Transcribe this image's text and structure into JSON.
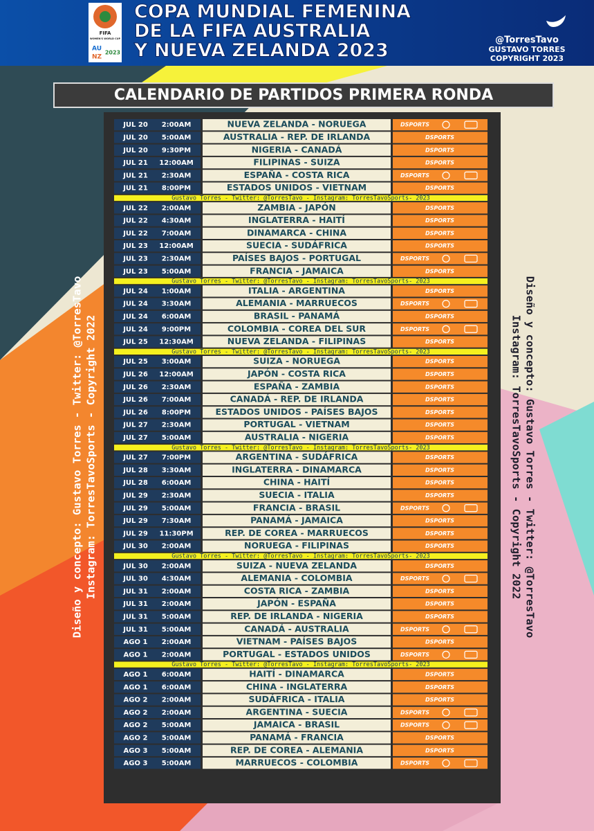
{
  "header": {
    "logo": [
      "FIFA",
      "WOMEN'S WORLD CUP",
      "AU",
      "NZ",
      "2023"
    ],
    "title_lines": [
      "COPA MUNDIAL FEMENINA",
      "DE LA FIFA AUSTRALIA",
      "Y NUEVA ZELANDA 2023"
    ],
    "handle": "@TorresTavo",
    "author": "GUSTAVO TORRES",
    "copyright": "COPYRIGHT 2023"
  },
  "subtitle": "CALENDARIO DE PARTIDOS PRIMERA RONDA",
  "separator": "Gustavo Torres - Twitter: @TorresTavo - Instagram: TorresTavoSports- 2023",
  "channel": "DSPORTS",
  "credits": {
    "left": [
      "Diseño y concepto: Gustavo Torres - Twitter: @TorresTavo",
      "Instagram: TorresTavoSports - Copyright 2022"
    ],
    "right": [
      "Diseño y concepto: Gustavo Torres - Twitter: @TorresTavo",
      "Instagram: TorresTavoSports - Copyright 2022"
    ]
  },
  "groups": [
    [
      [
        "JUL 20",
        "2:00AM",
        "NUEVA ZELANDA - NORUEGA",
        true
      ],
      [
        "JUL 20",
        "5:00AM",
        "AUSTRALIA - REP. DE IRLANDA",
        false
      ],
      [
        "JUL 20",
        "9:30PM",
        "NIGERIA - CANADÁ",
        false
      ],
      [
        "JUL 21",
        "12:00AM",
        "FILIPINAS - SUIZA",
        false
      ],
      [
        "JUL 21",
        "2:30AM",
        "ESPAÑA - COSTA RICA",
        true
      ],
      [
        "JUL 21",
        "8:00PM",
        "ESTADOS UNIDOS - VIETNAM",
        false
      ]
    ],
    [
      [
        "JUL 22",
        "2:00AM",
        "ZAMBIA - JAPÓN",
        false
      ],
      [
        "JUL 22",
        "4:30AM",
        "INGLATERRA - HAITÍ",
        false
      ],
      [
        "JUL 22",
        "7:00AM",
        "DINAMARCA - CHINA",
        false
      ],
      [
        "JUL 23",
        "12:00AM",
        "SUECIA - SUDÁFRICA",
        false
      ],
      [
        "JUL 23",
        "2:30AM",
        "PAÍSES BAJOS - PORTUGAL",
        true
      ],
      [
        "JUL 23",
        "5:00AM",
        "FRANCIA - JAMAICA",
        false
      ]
    ],
    [
      [
        "JUL 24",
        "1:00AM",
        "ITALIA - ARGENTINA",
        false
      ],
      [
        "JUL 24",
        "3:30AM",
        "ALEMANIA - MARRUECOS",
        true
      ],
      [
        "JUL 24",
        "6:00AM",
        "BRASIL - PANAMÁ",
        false
      ],
      [
        "JUL 24",
        "9:00PM",
        "COLOMBIA - COREA DEL SUR",
        true
      ],
      [
        "JUL 25",
        "12:30AM",
        "NUEVA ZELANDA - FILIPINAS",
        false
      ]
    ],
    [
      [
        "JUL 25",
        "3:00AM",
        "SUIZA - NORUEGA",
        false
      ],
      [
        "JUL 26",
        "12:00AM",
        "JAPÓN - COSTA RICA",
        false
      ],
      [
        "JUL 26",
        "2:30AM",
        "ESPAÑA - ZAMBIA",
        false
      ],
      [
        "JUL 26",
        "7:00AM",
        "CANADÁ - REP. DE IRLANDA",
        false
      ],
      [
        "JUL 26",
        "8:00PM",
        "ESTADOS UNIDOS - PAÍSES BAJOS",
        false
      ],
      [
        "JUL 27",
        "2:30AM",
        "PORTUGAL - VIETNAM",
        false
      ],
      [
        "JUL 27",
        "5:00AM",
        "AUSTRALIA - NIGERIA",
        false
      ]
    ],
    [
      [
        "JUL 27",
        "7:00PM",
        "ARGENTINA - SUDÁFRICA",
        false
      ],
      [
        "JUL 28",
        "3:30AM",
        "INGLATERRA - DINAMARCA",
        false
      ],
      [
        "JUL 28",
        "6:00AM",
        "CHINA - HAITÍ",
        false
      ],
      [
        "JUL 29",
        "2:30AM",
        "SUECIA - ITALIA",
        false
      ],
      [
        "JUL 29",
        "5:00AM",
        "FRANCIA - BRASIL",
        true
      ],
      [
        "JUL 29",
        "7:30AM",
        "PANAMÁ - JAMAICA",
        false
      ],
      [
        "JUL 29",
        "11:30PM",
        "REP. DE COREA - MARRUECOS",
        false
      ],
      [
        "JUL 30",
        "2:00AM",
        "NORUEGA - FILIPINAS",
        false
      ]
    ],
    [
      [
        "JUL 30",
        "2:00AM",
        "SUIZA - NUEVA ZELANDA",
        false
      ],
      [
        "JUL 30",
        "4:30AM",
        "ALEMANIA - COLOMBIA",
        true
      ],
      [
        "JUL 31",
        "2:00AM",
        "COSTA RICA - ZAMBIA",
        false
      ],
      [
        "JUL 31",
        "2:00AM",
        "JAPÓN - ESPAÑA",
        false
      ],
      [
        "JUL 31",
        "5:00AM",
        "REP. DE IRLANDA - NIGERIA",
        false
      ],
      [
        "JUL 31",
        "5:00AM",
        "CANADÁ - AUSTRALIA",
        true
      ],
      [
        "AGO 1",
        "2:00AM",
        "VIETNAM - PAÍSES BAJOS",
        false
      ],
      [
        "AGO 1",
        "2:00AM",
        "PORTUGAL - ESTADOS UNIDOS",
        true
      ]
    ],
    [
      [
        "AGO 1",
        "6:00AM",
        "HAITÍ - DINAMARCA",
        false
      ],
      [
        "AGO 1",
        "6:00AM",
        "CHINA - INGLATERRA",
        false
      ],
      [
        "AGO 2",
        "2:00AM",
        "SUDÁFRICA - ITALIA",
        false
      ],
      [
        "AGO 2",
        "2:00AM",
        "ARGENTINA - SUECIA",
        true
      ],
      [
        "AGO 2",
        "5:00AM",
        "JAMAICA - BRASIL",
        true
      ],
      [
        "AGO 2",
        "5:00AM",
        "PANAMÁ - FRANCIA",
        false
      ],
      [
        "AGO 3",
        "5:00AM",
        "REP. DE COREA - ALEMANIA",
        false
      ],
      [
        "AGO 3",
        "5:00AM",
        "MARRUECOS - COLOMBIA",
        true
      ]
    ]
  ]
}
